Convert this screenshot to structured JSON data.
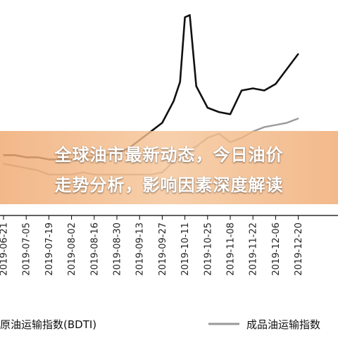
{
  "overlay": {
    "title_line1": "全球油市最新动态，今日油价",
    "title_line2": "走势分析，影响因素深度解读"
  },
  "colors": {
    "bdti": "#111111",
    "product": "#9a9a9a",
    "banner": "#f0b07a",
    "title_text": "#ffffff"
  },
  "chart_data": {
    "type": "line",
    "xlabel": "",
    "ylabel": "",
    "grid": false,
    "legend_placement": "bottom",
    "x_tick_labels": [
      "2019-06-21",
      "2019-07-05",
      "2019-07-19",
      "2019-08-02",
      "2019-08-16",
      "2019-08-30",
      "2019-09-13",
      "2019-09-27",
      "2019-10-11",
      "2019-10-25",
      "2019-11-08",
      "2019-11-22",
      "2019-12-06",
      "2019-12-20"
    ],
    "ylim": [
      0,
      100
    ],
    "series": [
      {
        "name": "原油运输指数(BDTI)",
        "color": "#111111",
        "points": [
          [
            "2019-06-21",
            28
          ],
          [
            "2019-06-28",
            28
          ],
          [
            "2019-07-05",
            27
          ],
          [
            "2019-07-12",
            27
          ],
          [
            "2019-07-19",
            26
          ],
          [
            "2019-07-26",
            26
          ],
          [
            "2019-08-02",
            26
          ],
          [
            "2019-08-09",
            27
          ],
          [
            "2019-08-16",
            27
          ],
          [
            "2019-08-23",
            28
          ],
          [
            "2019-08-30",
            29
          ],
          [
            "2019-09-06",
            31
          ],
          [
            "2019-09-13",
            35
          ],
          [
            "2019-09-20",
            39
          ],
          [
            "2019-09-27",
            43
          ],
          [
            "2019-10-04",
            53
          ],
          [
            "2019-10-08",
            62
          ],
          [
            "2019-10-11",
            92
          ],
          [
            "2019-10-14",
            93
          ],
          [
            "2019-10-18",
            60
          ],
          [
            "2019-10-25",
            50
          ],
          [
            "2019-11-01",
            48
          ],
          [
            "2019-11-08",
            47
          ],
          [
            "2019-11-15",
            58
          ],
          [
            "2019-11-22",
            59
          ],
          [
            "2019-11-29",
            58
          ],
          [
            "2019-12-06",
            61
          ],
          [
            "2019-12-13",
            68
          ],
          [
            "2019-12-20",
            75
          ]
        ]
      },
      {
        "name": "成品油运输指数",
        "color": "#9a9a9a",
        "points": [
          [
            "2019-06-21",
            24
          ],
          [
            "2019-06-28",
            23
          ],
          [
            "2019-07-05",
            22
          ],
          [
            "2019-07-12",
            21
          ],
          [
            "2019-07-19",
            19
          ],
          [
            "2019-07-26",
            19
          ],
          [
            "2019-08-02",
            19
          ],
          [
            "2019-08-09",
            20
          ],
          [
            "2019-08-16",
            19
          ],
          [
            "2019-08-23",
            19
          ],
          [
            "2019-08-30",
            19
          ],
          [
            "2019-09-06",
            19
          ],
          [
            "2019-09-13",
            19
          ],
          [
            "2019-09-20",
            19
          ],
          [
            "2019-09-27",
            20
          ],
          [
            "2019-10-04",
            25
          ],
          [
            "2019-10-11",
            29
          ],
          [
            "2019-10-18",
            32
          ],
          [
            "2019-10-25",
            36
          ],
          [
            "2019-11-01",
            38
          ],
          [
            "2019-11-08",
            34
          ],
          [
            "2019-11-15",
            36
          ],
          [
            "2019-11-22",
            39
          ],
          [
            "2019-11-29",
            41
          ],
          [
            "2019-12-06",
            42
          ],
          [
            "2019-12-13",
            43
          ],
          [
            "2019-12-20",
            45
          ]
        ]
      }
    ],
    "legend": [
      {
        "label": "原油运输指数(BDTI)",
        "color": "#111111"
      },
      {
        "label": "成品油运输指数",
        "color": "#9a9a9a"
      }
    ]
  }
}
